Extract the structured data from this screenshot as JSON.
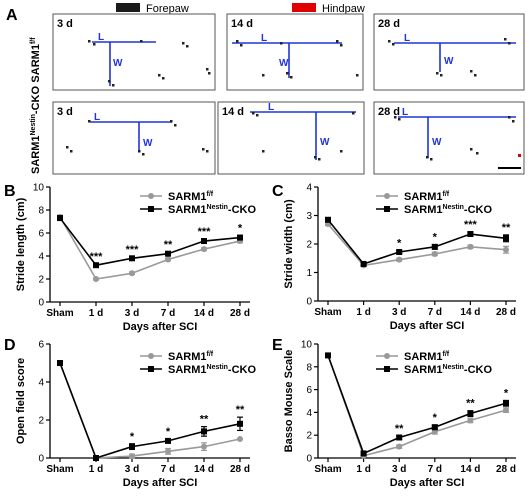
{
  "panel_letters": [
    "A",
    "B",
    "C",
    "D",
    "E"
  ],
  "legend_a": {
    "forepaw": {
      "label": "Forepaw",
      "color": "#1a1a1a"
    },
    "hindpaw": {
      "label": "Hindpaw",
      "color": "#e00000"
    }
  },
  "panel_a": {
    "rows": [
      {
        "label_main": "SARM1",
        "label_sup": "f/f",
        "cells": [
          {
            "day": "3 d"
          },
          {
            "day": "14 d"
          },
          {
            "day": "28 d"
          }
        ]
      },
      {
        "label_main": "SARM1",
        "label_sup": "Nestin",
        "label_suffix": "-CKO",
        "cells": [
          {
            "day": "3 d"
          },
          {
            "day": "14 d"
          },
          {
            "day": "28 d"
          }
        ]
      }
    ],
    "length_mark": "L",
    "width_mark": "W",
    "line_color": "#1f35d8"
  },
  "legend_series": {
    "ff": {
      "main": "SARM1",
      "sup": "f/f",
      "suffix": ""
    },
    "cko": {
      "main": "SARM1",
      "sup": "Nestin",
      "suffix": "-CKO"
    }
  },
  "series_colors": {
    "ff": "#999999",
    "cko": "#000000"
  },
  "chart_data": [
    {
      "id": "B",
      "type": "line",
      "x": [
        "Sham",
        "1 d",
        "3 d",
        "7 d",
        "14 d",
        "28 d"
      ],
      "xlabel": "Days after SCI",
      "ylabel": "Stride length (cm)",
      "ylim": [
        0,
        10
      ],
      "yticks": [
        0,
        2,
        4,
        6,
        8,
        10
      ],
      "series": [
        {
          "key": "ff",
          "values": [
            7.4,
            2.0,
            2.5,
            3.7,
            4.6,
            5.3
          ],
          "err": [
            0.15,
            0.08,
            0.1,
            0.12,
            0.12,
            0.15
          ]
        },
        {
          "key": "cko",
          "values": [
            7.3,
            3.2,
            3.8,
            4.2,
            5.3,
            5.6
          ],
          "err": [
            0.15,
            0.1,
            0.12,
            0.15,
            0.2,
            0.2
          ]
        }
      ],
      "significance": [
        "",
        "***",
        "***",
        "**",
        "***",
        "*"
      ]
    },
    {
      "id": "C",
      "type": "line",
      "x": [
        "Sham",
        "1 d",
        "3 d",
        "7 d",
        "14 d",
        "28 d"
      ],
      "xlabel": "Days after SCI",
      "ylabel": "Stride width (cm)",
      "ylim": [
        0,
        4
      ],
      "yticks": [
        0,
        1,
        2,
        3,
        4
      ],
      "series": [
        {
          "key": "ff",
          "values": [
            2.7,
            1.25,
            1.45,
            1.65,
            1.9,
            1.8
          ],
          "err": [
            0.05,
            0.04,
            0.05,
            0.06,
            0.06,
            0.12
          ]
        },
        {
          "key": "cko",
          "values": [
            2.85,
            1.3,
            1.72,
            1.9,
            2.35,
            2.2
          ],
          "err": [
            0.05,
            0.05,
            0.05,
            0.08,
            0.07,
            0.12
          ]
        }
      ],
      "significance": [
        "",
        "",
        "*",
        "*",
        "***",
        "**"
      ]
    },
    {
      "id": "D",
      "type": "line",
      "x": [
        "Sham",
        "1 d",
        "3 d",
        "7 d",
        "14 d",
        "28 d"
      ],
      "xlabel": "Days after SCI",
      "ylabel": "Open field score",
      "ylim": [
        0,
        6
      ],
      "yticks": [
        0,
        2,
        4,
        6
      ],
      "series": [
        {
          "key": "ff",
          "values": [
            5.0,
            0.0,
            0.1,
            0.35,
            0.6,
            1.0
          ],
          "err": [
            0.0,
            0.0,
            0.1,
            0.15,
            0.2,
            0.0
          ]
        },
        {
          "key": "cko",
          "values": [
            5.0,
            0.0,
            0.6,
            0.9,
            1.4,
            1.8
          ],
          "err": [
            0.0,
            0.0,
            0.15,
            0.1,
            0.25,
            0.35
          ]
        }
      ],
      "significance": [
        "",
        "",
        "*",
        "*",
        "**",
        "**"
      ]
    },
    {
      "id": "E",
      "type": "line",
      "x": [
        "Sham",
        "1 d",
        "3 d",
        "7 d",
        "14 d",
        "28 d"
      ],
      "xlabel": "Days after SCI",
      "ylabel": "Basso Mouse Scale",
      "ylim": [
        0,
        10
      ],
      "yticks": [
        0,
        2,
        4,
        6,
        8,
        10
      ],
      "series": [
        {
          "key": "ff",
          "values": [
            9.0,
            0.2,
            1.0,
            2.3,
            3.3,
            4.2
          ],
          "err": [
            0.0,
            0.1,
            0.15,
            0.2,
            0.2,
            0.2
          ]
        },
        {
          "key": "cko",
          "values": [
            9.0,
            0.4,
            1.8,
            2.7,
            3.9,
            4.8
          ],
          "err": [
            0.0,
            0.15,
            0.15,
            0.2,
            0.25,
            0.25
          ]
        }
      ],
      "significance": [
        "",
        "",
        "**",
        "*",
        "**",
        "*"
      ]
    }
  ]
}
